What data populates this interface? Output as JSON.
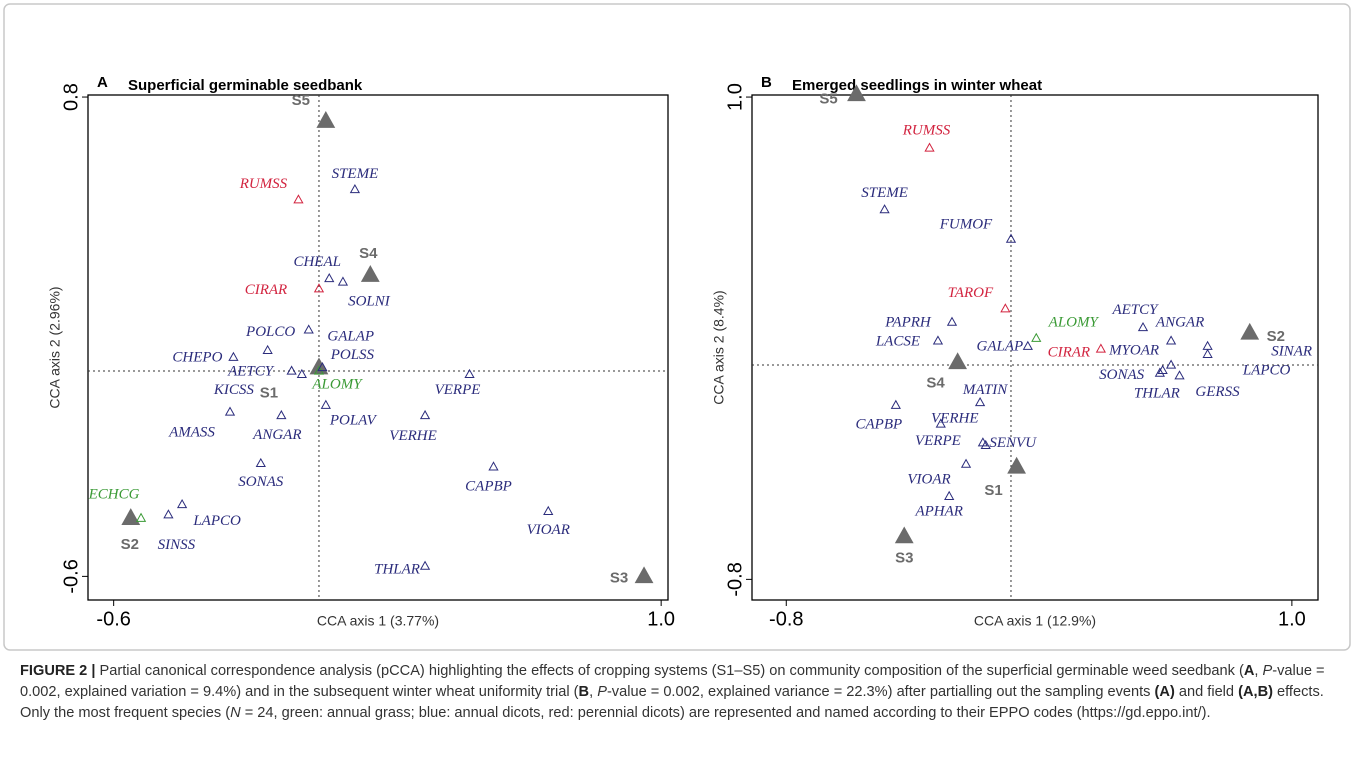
{
  "chart_data": [
    {
      "type": "scatter",
      "panel_label": "A",
      "title": "Superficial germinable seedbank",
      "x_label": "CCA axis 1 (3.77%)",
      "y_label": "CCA axis 2 (2.96%)",
      "xlim": [
        -0.675,
        1.02
      ],
      "ylim": [
        -0.669,
        0.879
      ],
      "xticks": [
        -0.6,
        {
          "value": 1,
          "label": "1.0"
        }
      ],
      "yticks": [
        -0.6,
        0.8
      ],
      "origin_lines": true,
      "series": [
        {
          "marker": "filled",
          "color": "#6b6b6b",
          "labels": [
            "S5",
            "S4",
            "S1",
            "S2",
            "S3"
          ],
          "x": [
            0.02,
            0.15,
            0.0,
            -0.55,
            0.95
          ],
          "values": [
            0.73,
            0.28,
            0.01,
            -0.43,
            -0.6
          ]
        },
        {
          "marker": "open",
          "color": "#3a9a35",
          "labels": [
            "ECHCG",
            "ALOMY"
          ],
          "x": [
            -0.52,
            0.0
          ],
          "values": [
            -0.43,
            0.0
          ]
        },
        {
          "marker": "open",
          "color": "#d2233f",
          "labels": [
            "RUMSS",
            "CIRAR"
          ],
          "x": [
            -0.06,
            0.0
          ],
          "values": [
            0.5,
            0.24
          ]
        },
        {
          "marker": "open",
          "color": "#2b2c7c",
          "labels": [
            "STEME",
            "CHEAL",
            "SOLNI",
            "GALAP",
            "POLCO",
            "CHEPO",
            "POLSS",
            "AETCY",
            "KICSS",
            "AMASS",
            "ANGAR",
            "POLAV",
            "VERPE",
            "VERHE",
            "SONAS",
            "CAPBP",
            "SINSS",
            "LAPCO",
            "VIOAR",
            "THLAR"
          ],
          "x": [
            0.105,
            0.03,
            0.07,
            -0.03,
            -0.15,
            -0.25,
            0.01,
            -0.08,
            -0.05,
            -0.26,
            -0.11,
            0.02,
            0.44,
            0.31,
            -0.17,
            0.51,
            -0.44,
            -0.4,
            0.67,
            0.31
          ],
          "values": [
            0.53,
            0.27,
            0.26,
            0.12,
            0.06,
            0.04,
            0.01,
            0.0,
            -0.01,
            -0.12,
            -0.13,
            -0.1,
            -0.01,
            -0.13,
            -0.27,
            -0.28,
            -0.42,
            -0.39,
            -0.41,
            -0.57
          ]
        }
      ]
    },
    {
      "type": "scatter",
      "panel_label": "B",
      "title": "Emerged seedlings in winter wheat",
      "x_label": "CCA axis 1 (12.9%)",
      "y_label": "CCA axis 2 (8.4%)",
      "xlim": [
        -0.922,
        1.093
      ],
      "ylim": [
        -0.877,
        1.101
      ],
      "xticks": [
        -0.8,
        {
          "value": 1,
          "label": "1.0"
        }
      ],
      "yticks": [
        -0.8,
        {
          "value": 1,
          "label": "1.0"
        }
      ],
      "origin_lines": true,
      "series": [
        {
          "marker": "filled",
          "color": "#6b6b6b",
          "labels": [
            "S5",
            "S2",
            "S4",
            "S1",
            "S3"
          ],
          "x": [
            -0.55,
            0.85,
            -0.19,
            0.02,
            -0.38
          ],
          "values": [
            1.01,
            0.12,
            0.01,
            -0.38,
            -0.64
          ]
        },
        {
          "marker": "open",
          "color": "#d2233f",
          "labels": [
            "RUMSS",
            "TAROF",
            "CIRAR"
          ],
          "x": [
            -0.29,
            -0.02,
            0.32
          ],
          "values": [
            0.81,
            0.21,
            0.06
          ]
        },
        {
          "marker": "open",
          "color": "#3a9a35",
          "labels": [
            "ALOMY"
          ],
          "x": [
            0.09
          ],
          "values": [
            0.1
          ]
        },
        {
          "marker": "open",
          "color": "#2b2c7c",
          "labels": [
            "STEME",
            "FUMOF",
            "PAPRH",
            "LACSE",
            "GALAP",
            "AETCY",
            "ANGAR",
            "MYOAR",
            "SINAR",
            "LAPCO",
            "SONAS",
            "THLAR",
            "GERSS",
            "MATIN",
            "CAPBP",
            "VERHE",
            "VERPE",
            "SENVU",
            "VIOAR",
            "APHAR"
          ],
          "x": [
            -0.45,
            0.0,
            -0.21,
            -0.26,
            0.06,
            0.47,
            0.57,
            0.57,
            0.7,
            0.7,
            0.54,
            0.53,
            0.6,
            -0.11,
            -0.41,
            -0.25,
            -0.1,
            -0.09,
            -0.16,
            -0.22
          ],
          "values": [
            0.58,
            0.47,
            0.16,
            0.09,
            0.07,
            0.14,
            0.09,
            0.0,
            0.07,
            0.04,
            -0.02,
            -0.03,
            -0.04,
            -0.14,
            -0.15,
            -0.22,
            -0.29,
            -0.3,
            -0.37,
            -0.49
          ]
        }
      ]
    }
  ],
  "caption": {
    "parts": [
      "FIGURE 2 |",
      " Partial canonical correspondence analysis (pCCA) highlighting the effects of cropping systems (S1–S5) on community composition of the superficial germinable weed seedbank (",
      "A",
      ", ",
      "P",
      "-value = 0.002, explained variation = 9.4%) and in the subsequent winter wheat uniformity trial (",
      "B",
      ", ",
      "P",
      "-value = 0.002, explained variance = 22.3%) after partialling out the sampling events ",
      "(A)",
      " and field ",
      "(A,B)",
      " effects. Only the most frequent species (",
      "N",
      " = 24, green: annual grass; blue: annual dicots, red: perennial dicots) are represented and named according to their EPPO codes (https://gd.eppo.int/)."
    ]
  }
}
